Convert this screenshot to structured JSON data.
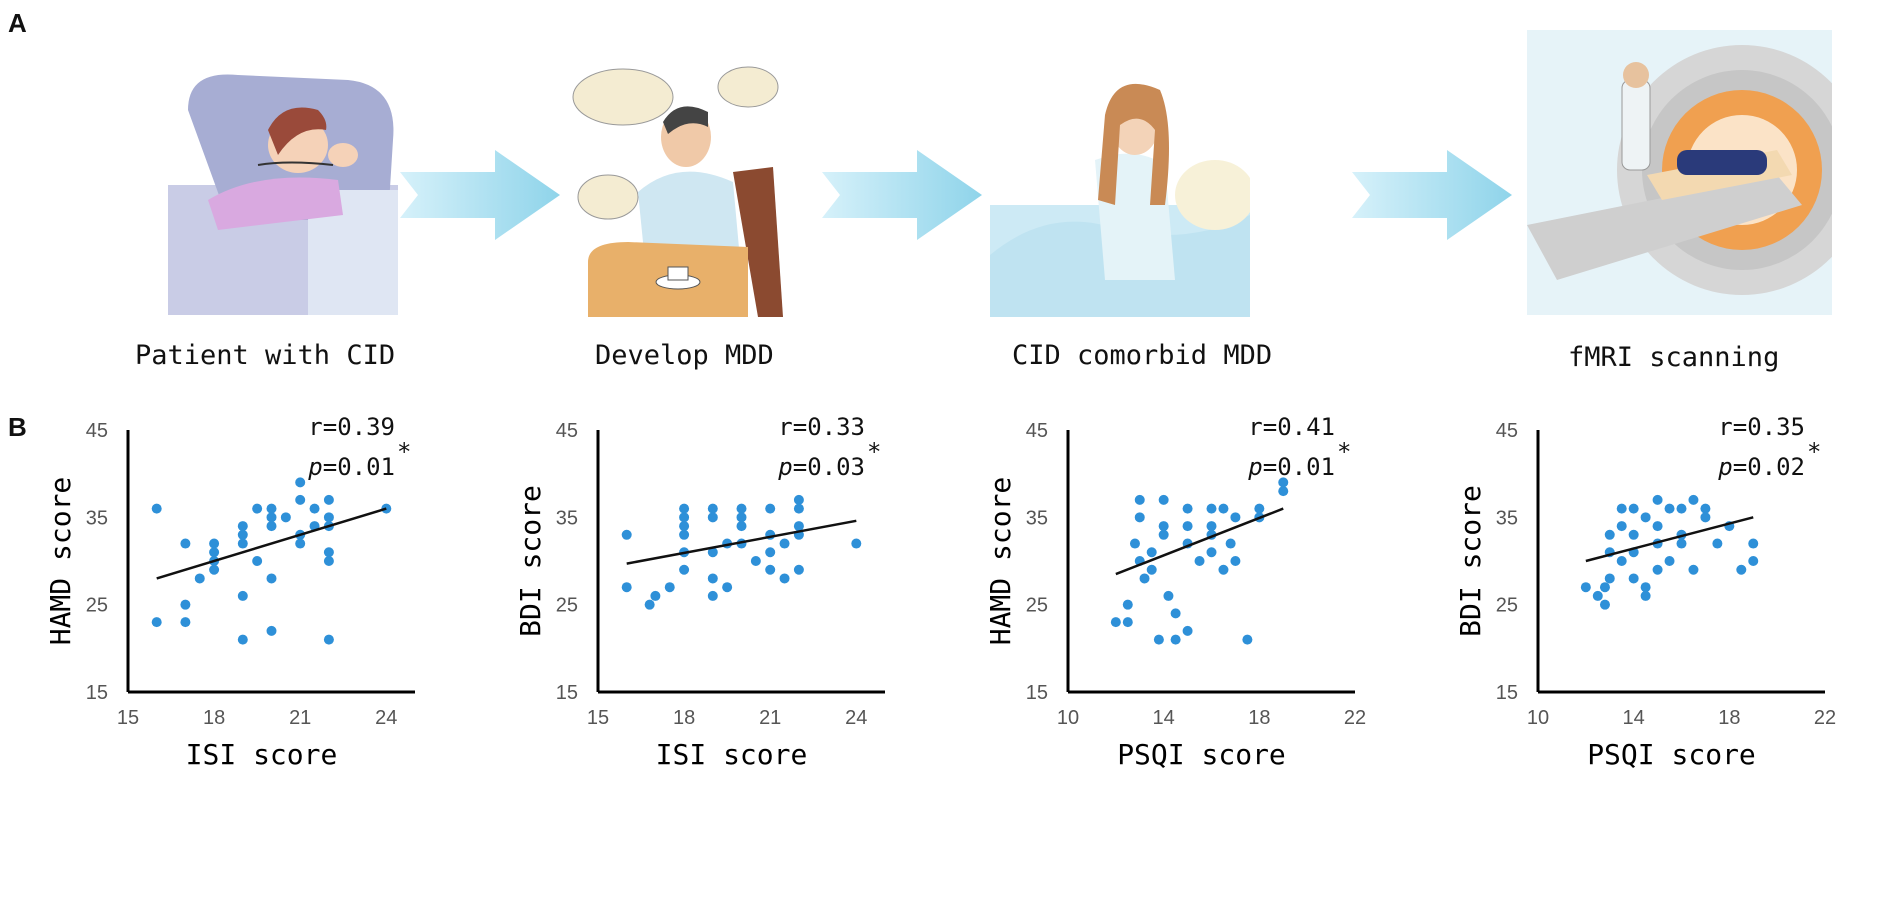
{
  "panel_a": {
    "letter": "A",
    "steps": [
      {
        "caption": "Patient with CID",
        "icon": "sleeping-patient-illustration"
      },
      {
        "caption": "Develop MDD",
        "icon": "depressed-man-illustration"
      },
      {
        "caption": "CID comorbid MDD",
        "icon": "sleepless-woman-illustration"
      },
      {
        "caption": "fMRI scanning",
        "icon": "mri-scanner-illustration"
      }
    ],
    "arrow_color": "#9fdcef"
  },
  "panel_b": {
    "letter": "B"
  },
  "chart_data": [
    {
      "type": "scatter",
      "title": "",
      "xlabel": "ISI score",
      "ylabel": "HAMD score",
      "xlim": [
        15,
        25
      ],
      "ylim": [
        15,
        45
      ],
      "xticks": [
        "15",
        "18",
        "21",
        "24"
      ],
      "yticks": [
        "15",
        "25",
        "35",
        "45"
      ],
      "x": [
        16,
        16,
        17,
        17,
        17,
        17.5,
        18,
        18,
        18,
        18,
        19,
        19,
        19,
        19,
        19,
        19.5,
        19.5,
        20,
        20,
        20,
        20,
        20,
        20.5,
        21,
        21,
        21,
        21,
        21.5,
        21.5,
        22,
        22,
        22,
        22,
        22,
        22,
        24
      ],
      "y": [
        23,
        36,
        32,
        25,
        23,
        28,
        32,
        31,
        30,
        29,
        34,
        33,
        32,
        26,
        21,
        36,
        30,
        36,
        35,
        34,
        28,
        22,
        35,
        39,
        37,
        33,
        32,
        36,
        34,
        37,
        35,
        34,
        31,
        30,
        21,
        36
      ],
      "fit": {
        "x": [
          16,
          24
        ],
        "y": [
          28,
          36
        ]
      },
      "r_label": "r=0.39",
      "p_label": "=0.01",
      "p_symbol": "p",
      "sig": "*",
      "color": "#2e90d8"
    },
    {
      "type": "scatter",
      "title": "",
      "xlabel": "ISI score",
      "ylabel": "BDI score",
      "xlim": [
        15,
        25
      ],
      "ylim": [
        15,
        45
      ],
      "xticks": [
        "15",
        "18",
        "21",
        "24"
      ],
      "yticks": [
        "15",
        "25",
        "35",
        "45"
      ],
      "x": [
        16,
        16,
        16.8,
        17,
        17.5,
        18,
        18,
        18,
        18,
        18,
        18,
        19,
        19,
        19,
        19,
        19,
        19.5,
        19.5,
        20,
        20,
        20,
        20,
        20.5,
        21,
        21,
        21,
        21,
        21.5,
        21.5,
        22,
        22,
        22,
        22,
        22,
        24
      ],
      "y": [
        27,
        33,
        25,
        26,
        27,
        36,
        35,
        34,
        33,
        31,
        29,
        36,
        35,
        31,
        28,
        26,
        32,
        27,
        36,
        35,
        34,
        32,
        30,
        36,
        33,
        31,
        29,
        32,
        28,
        37,
        36,
        34,
        33,
        29,
        32
      ],
      "fit": {
        "x": [
          16,
          24
        ],
        "y": [
          29.7,
          34.6
        ]
      },
      "r_label": "r=0.33",
      "p_label": "=0.03",
      "p_symbol": "p",
      "sig": "*",
      "color": "#2e90d8"
    },
    {
      "type": "scatter",
      "title": "",
      "xlabel": "PSQI score",
      "ylabel": "HAMD score",
      "xlim": [
        10,
        22
      ],
      "ylim": [
        15,
        45
      ],
      "xticks": [
        "10",
        "14",
        "18",
        "22"
      ],
      "yticks": [
        "15",
        "25",
        "35",
        "45"
      ],
      "x": [
        12,
        12.5,
        12.8,
        13,
        13,
        13,
        13.2,
        13.5,
        13.5,
        13.8,
        14,
        14,
        14,
        14.2,
        14.5,
        14.5,
        15,
        15,
        15,
        15,
        15.5,
        16,
        16,
        16,
        16,
        16.5,
        16.5,
        16.8,
        17,
        17,
        17.5,
        18,
        18,
        19,
        19,
        12.5
      ],
      "y": [
        23,
        25,
        32,
        37,
        35,
        30,
        28,
        31,
        29,
        21,
        37,
        34,
        33,
        26,
        24,
        21,
        36,
        34,
        32,
        22,
        30,
        36,
        34,
        33,
        31,
        29,
        36,
        32,
        35,
        30,
        21,
        36,
        35,
        39,
        38,
        23
      ],
      "fit": {
        "x": [
          12,
          19
        ],
        "y": [
          28.5,
          36
        ]
      },
      "r_label": "r=0.41",
      "p_label": "=0.01",
      "p_symbol": "p",
      "sig": "*",
      "color": "#2e90d8"
    },
    {
      "type": "scatter",
      "title": "",
      "xlabel": "PSQI score",
      "ylabel": "BDI score",
      "xlim": [
        10,
        22
      ],
      "ylim": [
        15,
        45
      ],
      "xticks": [
        "10",
        "14",
        "18",
        "22"
      ],
      "yticks": [
        "15",
        "25",
        "35",
        "45"
      ],
      "x": [
        12,
        12.5,
        12.8,
        13,
        13,
        13,
        13.5,
        13.5,
        13.5,
        14,
        14,
        14,
        14,
        14.5,
        14.5,
        14.5,
        15,
        15,
        15,
        15,
        15.5,
        15.5,
        16,
        16,
        16,
        16.5,
        16.5,
        17,
        17,
        17.5,
        18,
        18.5,
        19,
        19,
        12.8
      ],
      "y": [
        27,
        26,
        25,
        33,
        31,
        28,
        36,
        34,
        30,
        36,
        33,
        31,
        28,
        35,
        27,
        26,
        37,
        34,
        32,
        29,
        36,
        30,
        36,
        33,
        32,
        37,
        29,
        36,
        35,
        32,
        34,
        29,
        32,
        30,
        27
      ],
      "fit": {
        "x": [
          12,
          19
        ],
        "y": [
          30,
          35
        ]
      },
      "r_label": "r=0.35",
      "p_label": "=0.02",
      "p_symbol": "p",
      "sig": "*",
      "color": "#2e90d8"
    }
  ]
}
